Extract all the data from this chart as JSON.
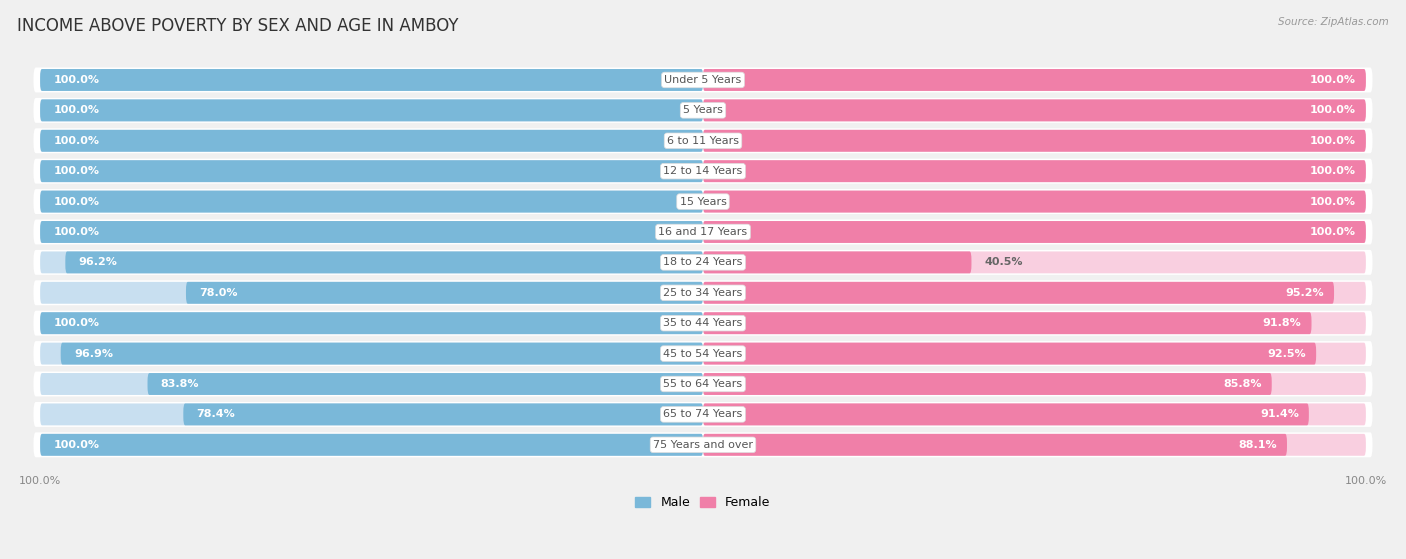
{
  "title": "INCOME ABOVE POVERTY BY SEX AND AGE IN AMBOY",
  "source": "Source: ZipAtlas.com",
  "categories": [
    "Under 5 Years",
    "5 Years",
    "6 to 11 Years",
    "12 to 14 Years",
    "15 Years",
    "16 and 17 Years",
    "18 to 24 Years",
    "25 to 34 Years",
    "35 to 44 Years",
    "45 to 54 Years",
    "55 to 64 Years",
    "65 to 74 Years",
    "75 Years and over"
  ],
  "male": [
    100.0,
    100.0,
    100.0,
    100.0,
    100.0,
    100.0,
    96.2,
    78.0,
    100.0,
    96.9,
    83.8,
    78.4,
    100.0
  ],
  "female": [
    100.0,
    100.0,
    100.0,
    100.0,
    100.0,
    100.0,
    40.5,
    95.2,
    91.8,
    92.5,
    85.8,
    91.4,
    88.1
  ],
  "male_color": "#7ab8d9",
  "female_color": "#f07fa8",
  "male_light_color": "#c8dff0",
  "female_light_color": "#f9cfe0",
  "row_bg_color": "#ffffff",
  "bg_color": "#f0f0f0",
  "title_fontsize": 12,
  "label_fontsize": 8,
  "category_fontsize": 8,
  "legend_fontsize": 9,
  "max_val": 100.0
}
